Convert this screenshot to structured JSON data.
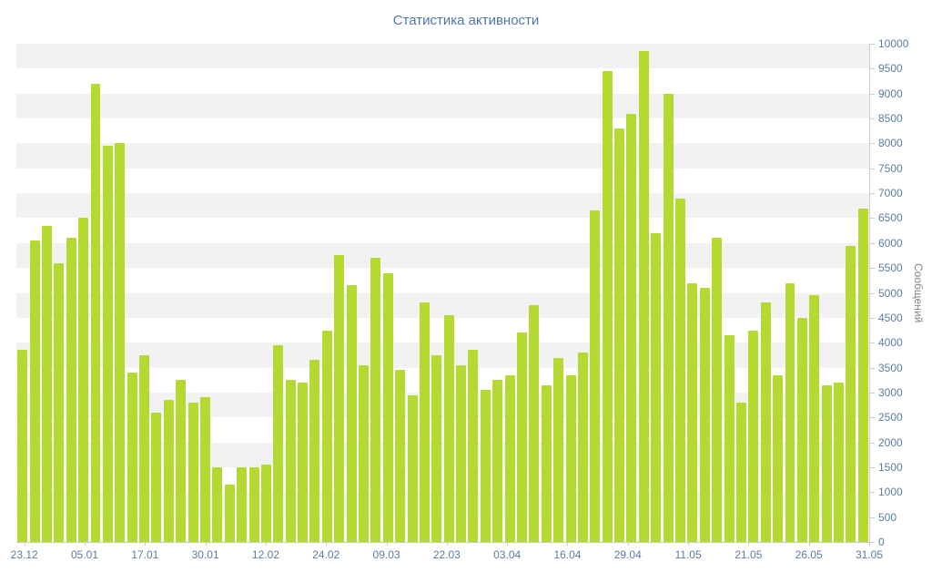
{
  "chart_data": {
    "type": "bar",
    "title": "Статистика активности",
    "xlabel": "",
    "ylabel": "Сообщений",
    "ylim": [
      0,
      10000
    ],
    "y_tick_step": 500,
    "grid": "alternating-horizontal-stripes",
    "legend": "none",
    "x_tick_labels": [
      "23.12",
      "05.01",
      "17.01",
      "30.01",
      "12.02",
      "24.02",
      "09.03",
      "22.03",
      "03.04",
      "16.04",
      "29.04",
      "11.05",
      "21.05",
      "26.05",
      "31.05"
    ],
    "values": [
      3850,
      6050,
      6350,
      5600,
      6100,
      6500,
      9200,
      7950,
      8000,
      3400,
      3750,
      2600,
      2850,
      3250,
      2800,
      2900,
      1500,
      1150,
      1500,
      1500,
      1550,
      3950,
      3250,
      3200,
      3650,
      4250,
      5750,
      5150,
      3550,
      5700,
      5400,
      3450,
      2950,
      4800,
      3750,
      4550,
      3550,
      3850,
      3050,
      3250,
      3350,
      4200,
      4750,
      3150,
      3700,
      3350,
      3800,
      6650,
      9450,
      8300,
      8600,
      9850,
      6200,
      9000,
      6900,
      5200,
      5100,
      6100,
      4150,
      2800,
      4250,
      4800,
      3350,
      5200,
      4500,
      4950,
      3150,
      3200,
      5950,
      6700
    ],
    "colors": {
      "bar": "#b4da32",
      "title": "#4d77a8",
      "axis_label": "#5b7da1",
      "y_axis_title": "#858585",
      "stripe": "#f2f2f2",
      "axis_line": "#cccccc",
      "background": "#ffffff"
    }
  }
}
